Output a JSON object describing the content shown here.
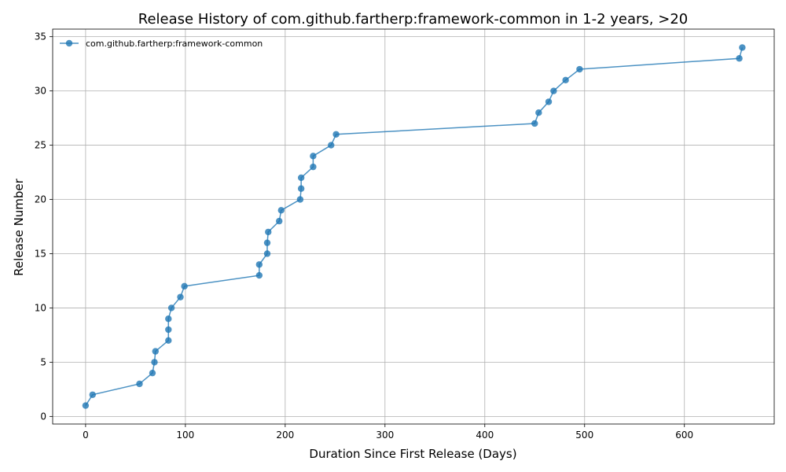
{
  "chart_data": {
    "type": "line",
    "title": "Release History of com.github.fartherp:framework-common in 1-2 years, >20",
    "xlabel": "Duration Since First Release (Days)",
    "ylabel": "Release Number",
    "xlim": [
      -33,
      690
    ],
    "ylim": [
      -0.7,
      35.7
    ],
    "xticks": [
      0,
      100,
      200,
      300,
      400,
      500,
      600
    ],
    "yticks": [
      0,
      5,
      10,
      15,
      20,
      25,
      30,
      35
    ],
    "grid": true,
    "legend_position": "top-left",
    "series": [
      {
        "name": "com.github.fartherp:framework-common",
        "color": "#1f77b4",
        "marker": "circle",
        "x": [
          0,
          7,
          54,
          67,
          69,
          70,
          83,
          83,
          83,
          86,
          95,
          99,
          174,
          174,
          182,
          182,
          183,
          194,
          196,
          215,
          216,
          216,
          228,
          228,
          246,
          251,
          450,
          454,
          464,
          469,
          481,
          495,
          655,
          658
        ],
        "y": [
          1,
          2,
          3,
          4,
          5,
          6,
          7,
          8,
          9,
          10,
          11,
          12,
          13,
          14,
          15,
          16,
          17,
          18,
          19,
          20,
          21,
          22,
          23,
          24,
          25,
          26,
          27,
          28,
          29,
          30,
          31,
          32,
          33,
          34
        ]
      }
    ]
  }
}
